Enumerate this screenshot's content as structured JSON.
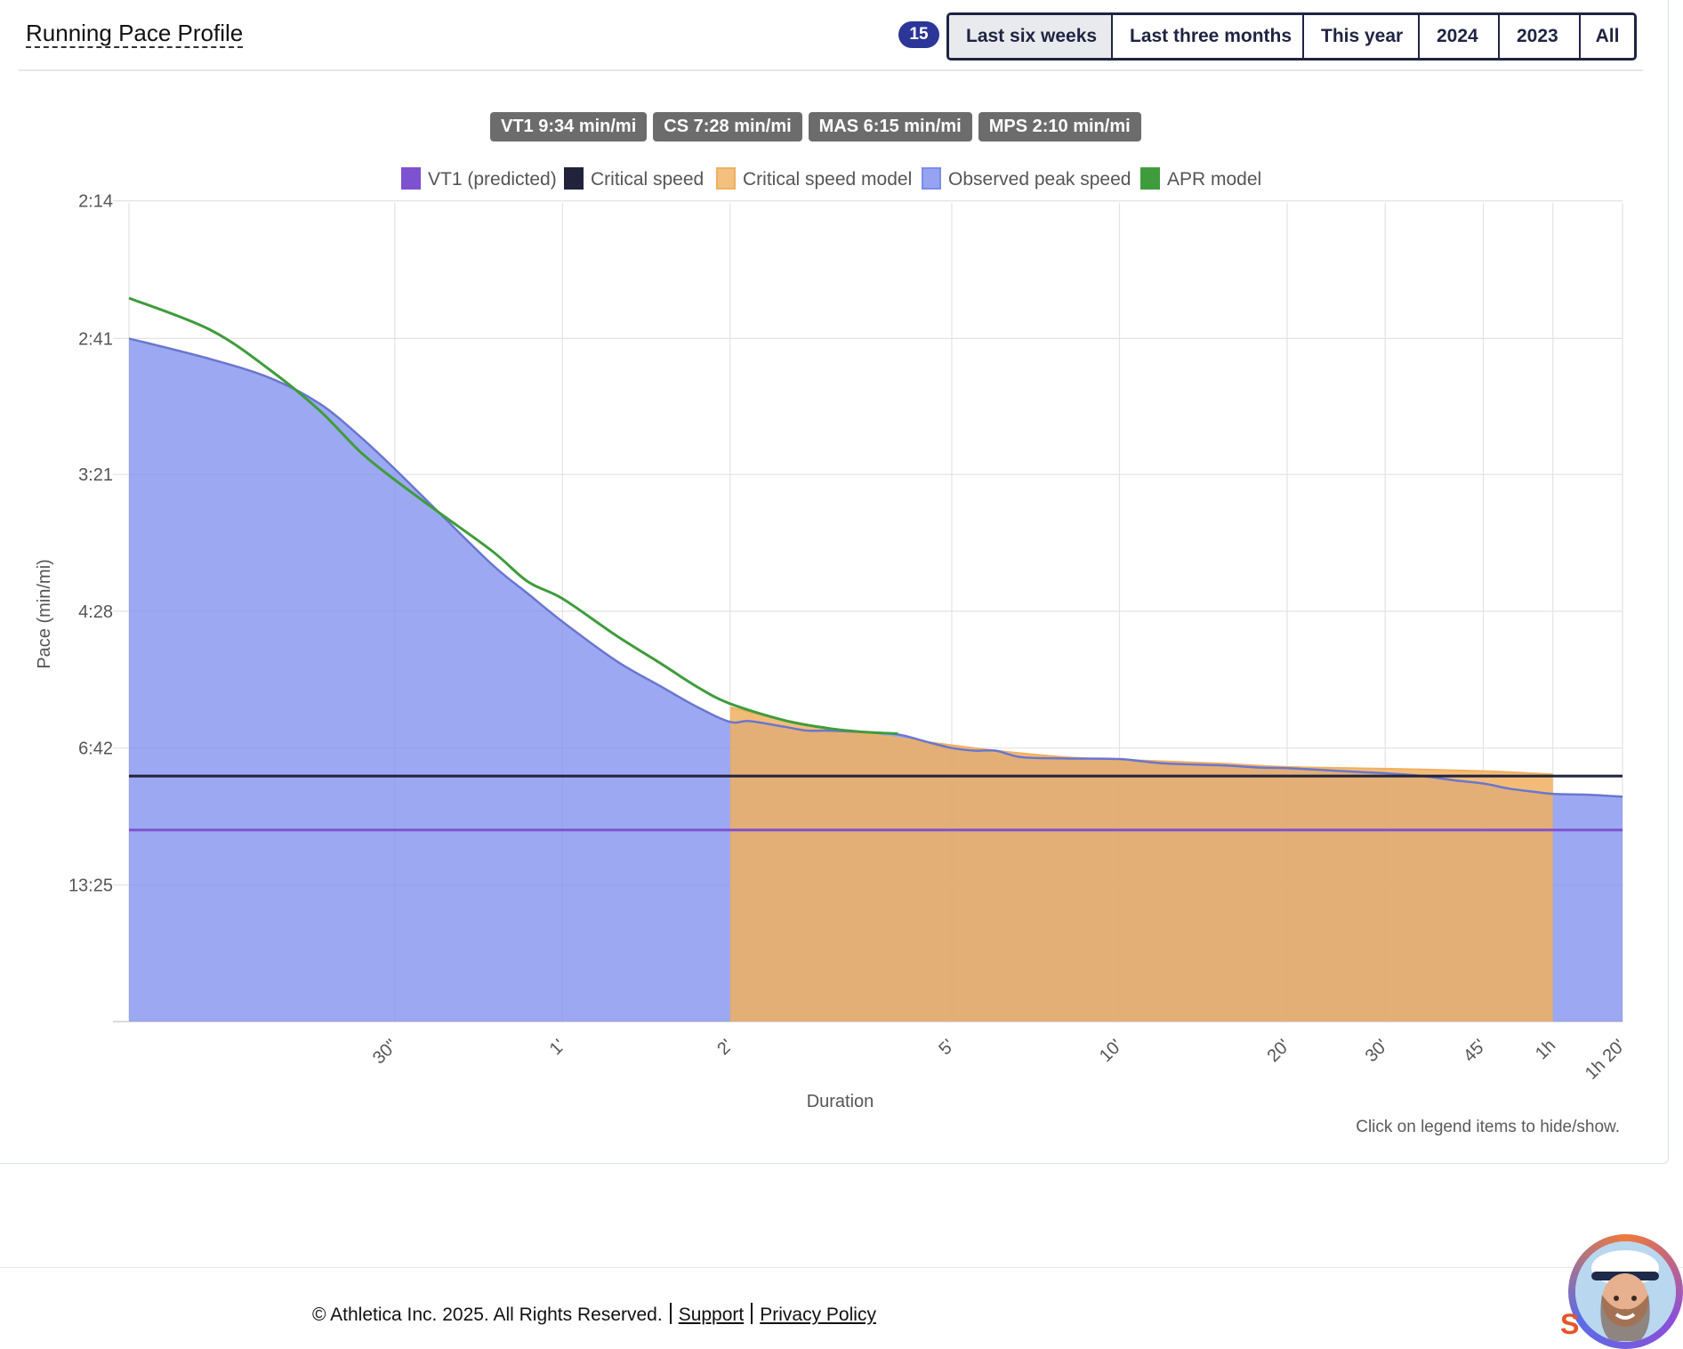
{
  "header": {
    "title": "Running Pace Profile",
    "count_badge": "15",
    "ranges": [
      "Last six weeks",
      "Last three months",
      "This year",
      "2024",
      "2023",
      "All"
    ],
    "active_range": "Last six weeks"
  },
  "stats": [
    "VT1 9:34 min/mi",
    "CS 7:28 min/mi",
    "MAS 6:15 min/mi",
    "MPS 2:10 min/mi"
  ],
  "chart_data": {
    "type": "area",
    "xlabel": "Duration",
    "ylabel": "Pace (min/mi)",
    "x_scale": "log",
    "y_scale": "speed (reciprocal pace)",
    "x_ticks": [
      {
        "seconds": 30,
        "label": "30\""
      },
      {
        "seconds": 60,
        "label": "1'"
      },
      {
        "seconds": 120,
        "label": "2'"
      },
      {
        "seconds": 300,
        "label": "5'"
      },
      {
        "seconds": 600,
        "label": "10'"
      },
      {
        "seconds": 1200,
        "label": "20'"
      },
      {
        "seconds": 1800,
        "label": "30'"
      },
      {
        "seconds": 2700,
        "label": "45'"
      },
      {
        "seconds": 3600,
        "label": "1h"
      },
      {
        "seconds": 4800,
        "label": "1h 20'"
      }
    ],
    "y_ticks": [
      "2:14",
      "2:41",
      "3:21",
      "4:28",
      "6:42",
      "13:25"
    ],
    "xlim_seconds": [
      10,
      4800
    ],
    "ylim_mph": [
      0,
      26.8
    ],
    "legend": [
      "VT1 (predicted)",
      "Critical speed",
      "Critical speed model",
      "Observed peak speed",
      "APR model"
    ],
    "legend_position": "top-center",
    "grid": true,
    "colors": {
      "vt1": "#7e52cf",
      "critical_speed": "#20233a",
      "cs_model": "#f0b060",
      "observed": "#7b8ced",
      "apr": "#3f9c3c"
    },
    "series": [
      {
        "name": "Observed peak speed",
        "seconds": [
          10,
          14,
          18,
          22,
          26,
          30,
          36,
          45,
          52,
          60,
          75,
          90,
          105,
          120,
          130,
          150,
          165,
          180,
          210,
          240,
          270,
          300,
          330,
          360,
          400,
          480,
          600,
          720,
          900,
          1080,
          1200,
          1500,
          1800,
          2100,
          2400,
          2700,
          3000,
          3300,
          3600,
          4200,
          4800
        ],
        "pace": [
          "2:41",
          "2:46",
          "2:51",
          "2:58",
          "3:08",
          "3:19",
          "3:36",
          "4:01",
          "4:17",
          "4:35",
          "5:05",
          "5:28",
          "5:50",
          "6:07",
          "6:06",
          "6:13",
          "6:18",
          "6:18",
          "6:20",
          "6:23",
          "6:33",
          "6:42",
          "6:46",
          "6:46",
          "6:56",
          "6:58",
          "6:59",
          "7:06",
          "7:09",
          "7:13",
          "7:14",
          "7:19",
          "7:23",
          "7:28",
          "7:36",
          "7:42",
          "7:52",
          "7:58",
          "8:03",
          "8:05",
          "8:09"
        ]
      },
      {
        "name": "Critical speed model",
        "seconds": [
          120,
          150,
          180,
          240,
          300,
          360,
          480,
          600,
          900,
          1200,
          1800,
          2700,
          3600
        ],
        "pace": [
          "5:50",
          "6:05",
          "6:15",
          "6:28",
          "6:38",
          "6:46",
          "6:56",
          "7:00",
          "7:06",
          "7:12",
          "7:15",
          "7:19",
          "7:25"
        ]
      },
      {
        "name": "APR model",
        "seconds": [
          10,
          14,
          18,
          22,
          26,
          30,
          36,
          45,
          52,
          60,
          75,
          90,
          105,
          120,
          150,
          180,
          210,
          240
        ],
        "pace": [
          "2:32",
          "2:39",
          "2:49",
          "3:00",
          "3:13",
          "3:23",
          "3:36",
          "3:54",
          "4:10",
          "4:20",
          "4:45",
          "5:07",
          "5:29",
          "5:46",
          "6:05",
          "6:15",
          "6:20",
          "6:22"
        ]
      },
      {
        "name": "Critical speed",
        "pace": "7:28"
      },
      {
        "name": "VT1 (predicted)",
        "pace": "9:34"
      }
    ]
  },
  "hint": "Click on legend items to hide/show.",
  "footer": {
    "copyright": "© Athletica Inc. 2025. All Rights Reserved.",
    "support": "Support",
    "privacy": "Privacy Policy"
  }
}
